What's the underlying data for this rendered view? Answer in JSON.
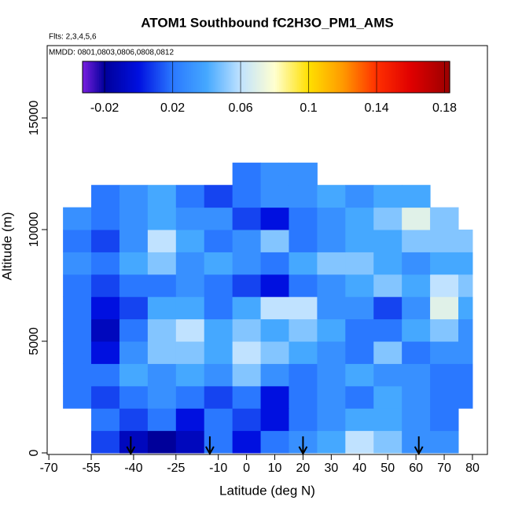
{
  "chart_data": {
    "type": "heatmap",
    "title": "ATOM1 Southbound fC2H3O_PM1_AMS",
    "annotations": [
      "Flts: 2,3,4,5,6",
      "MMDD: 0801,0803,0806,0808,0812"
    ],
    "xlabel": "Latitude (deg N)",
    "ylabel": "Altitude (m)",
    "xlim": [
      -70.6,
      85.3
    ],
    "ylim": [
      -70,
      18240
    ],
    "xticks": [
      -70,
      -55,
      -40,
      -25,
      -10,
      0,
      10,
      20,
      30,
      40,
      50,
      60,
      70,
      80
    ],
    "yticks": [
      0,
      5000,
      10000,
      15000
    ],
    "x_edges": [
      -65,
      -55,
      -45,
      -35,
      -25,
      -15,
      -5,
      5,
      15,
      25,
      35,
      45,
      55,
      65,
      75,
      80
    ],
    "y_edges": [
      0,
      1000,
      2000,
      3000,
      4000,
      5000,
      6000,
      7000,
      8000,
      9000,
      10000,
      11000,
      12000,
      13000
    ],
    "z": [
      [
        null,
        0.01,
        -0.01,
        -0.02,
        -0.01,
        0.02,
        0.0,
        0.02,
        0.03,
        0.04,
        0.06,
        0.05,
        0.03,
        0.03,
        null
      ],
      [
        null,
        0.02,
        0.01,
        0.02,
        0.0,
        0.02,
        0.01,
        0.0,
        0.02,
        0.03,
        0.04,
        0.04,
        0.03,
        0.02,
        null
      ],
      [
        0.02,
        0.01,
        0.02,
        0.03,
        0.02,
        0.01,
        0.02,
        0.0,
        0.02,
        0.03,
        0.02,
        0.04,
        0.03,
        0.02,
        0.02
      ],
      [
        0.02,
        0.02,
        0.04,
        0.03,
        0.04,
        0.03,
        0.05,
        0.03,
        0.02,
        0.03,
        0.04,
        0.03,
        0.03,
        0.02,
        0.02
      ],
      [
        0.02,
        0.0,
        0.03,
        0.05,
        0.05,
        0.04,
        0.06,
        0.05,
        0.04,
        0.03,
        0.02,
        0.05,
        0.02,
        0.03,
        0.03
      ],
      [
        0.02,
        -0.01,
        0.02,
        0.05,
        0.06,
        0.04,
        0.05,
        0.04,
        0.05,
        0.04,
        0.02,
        0.02,
        0.04,
        0.05,
        0.03
      ],
      [
        0.02,
        0.0,
        0.01,
        0.04,
        0.04,
        0.02,
        0.04,
        0.06,
        0.06,
        0.03,
        0.03,
        0.01,
        0.03,
        0.07,
        0.04
      ],
      [
        0.02,
        0.01,
        0.02,
        0.02,
        0.03,
        0.02,
        0.01,
        0.0,
        0.02,
        0.03,
        0.04,
        0.05,
        0.04,
        0.06,
        0.05
      ],
      [
        0.03,
        0.02,
        0.04,
        0.05,
        0.03,
        0.04,
        0.03,
        0.02,
        0.04,
        0.05,
        0.05,
        0.04,
        0.03,
        0.04,
        0.04
      ],
      [
        0.02,
        0.01,
        0.03,
        0.06,
        0.04,
        0.02,
        0.03,
        0.05,
        0.02,
        0.03,
        0.04,
        0.04,
        0.05,
        0.05,
        0.05
      ],
      [
        0.03,
        0.02,
        0.03,
        0.04,
        0.03,
        0.03,
        0.01,
        0.0,
        0.02,
        0.03,
        0.04,
        0.05,
        0.07,
        0.05,
        null
      ],
      [
        null,
        0.02,
        0.03,
        0.04,
        0.02,
        0.01,
        0.02,
        0.03,
        0.03,
        0.04,
        0.03,
        0.04,
        0.04,
        null,
        null
      ],
      [
        null,
        null,
        null,
        null,
        null,
        null,
        0.02,
        0.03,
        0.03,
        null,
        null,
        null,
        null,
        null,
        null
      ]
    ],
    "zlim": [
      -0.033,
      0.183
    ],
    "zticks": [
      -0.02,
      0.02,
      0.06,
      0.1,
      0.14,
      0.18
    ],
    "colorscale": [
      [
        -0.033,
        "#7a1fe0"
      ],
      [
        -0.02,
        "#00009a"
      ],
      [
        0.0,
        "#0010e0"
      ],
      [
        0.02,
        "#2a78ff"
      ],
      [
        0.04,
        "#45a8ff"
      ],
      [
        0.06,
        "#c0e2ff"
      ],
      [
        0.08,
        "#ffffd0"
      ],
      [
        0.1,
        "#ffe000"
      ],
      [
        0.12,
        "#ff9a00"
      ],
      [
        0.14,
        "#ff3000"
      ],
      [
        0.16,
        "#e00000"
      ],
      [
        0.183,
        "#9a0000"
      ]
    ],
    "arrows": [
      -41,
      -13,
      20,
      61
    ]
  }
}
